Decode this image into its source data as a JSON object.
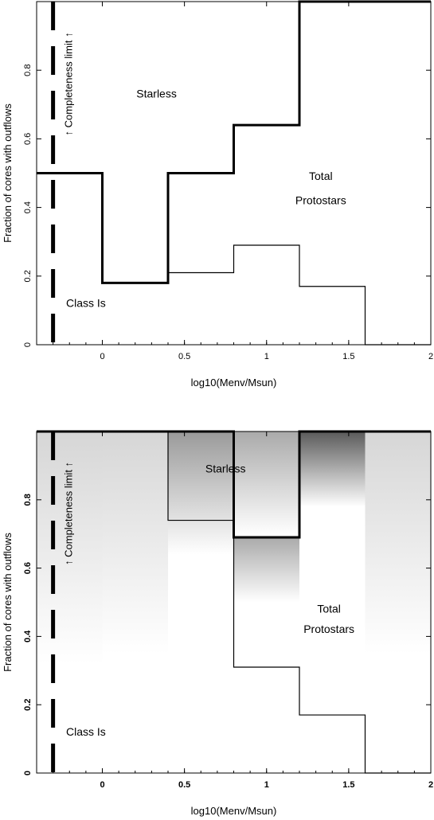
{
  "chart_data": [
    {
      "type": "step",
      "xlabel": "log10(Menv/Msun)",
      "ylabel": "Fraction of cores with outflows",
      "xlim": [
        -0.4,
        2.0
      ],
      "ylim": [
        0,
        1.0
      ],
      "xticks": [
        {
          "value": 0,
          "label": "0"
        },
        {
          "value": 0.5,
          "label": "0.5"
        },
        {
          "value": 1,
          "label": "1"
        },
        {
          "value": 1.5,
          "label": "1.5"
        },
        {
          "value": 2,
          "label": "2"
        }
      ],
      "yticks": [
        {
          "value": 0,
          "label": "0"
        },
        {
          "value": 0.2,
          "label": "0.2"
        },
        {
          "value": 0.4,
          "label": "0.4"
        },
        {
          "value": 0.6,
          "label": "0.6"
        },
        {
          "value": 0.8,
          "label": "0.8"
        }
      ],
      "bin_edges": [
        -0.4,
        0,
        0.4,
        0.8,
        1.2,
        1.6,
        2.0
      ],
      "series": [
        {
          "name": "Starless",
          "style": "thick",
          "values": [
            0.5,
            0.18,
            0.5,
            0.64,
            1.0,
            1.0
          ]
        },
        {
          "name": "Class Is",
          "style": "thin",
          "values": [
            0.5,
            0.18,
            0.21,
            0.29,
            0.17,
            0.0
          ]
        }
      ],
      "completeness_limit_x": -0.3,
      "annotations": [
        {
          "text": "Starless",
          "x": 0.33,
          "y": 0.72
        },
        {
          "text": "Total",
          "x": 1.33,
          "y": 0.48
        },
        {
          "text": "Protostars",
          "x": 1.33,
          "y": 0.41
        },
        {
          "text": "Class Is",
          "x": -0.1,
          "y": 0.11
        }
      ],
      "completeness_label": "↑ Completeness limit ↑"
    },
    {
      "type": "step",
      "xlabel": "log10(Menv/Msun)",
      "ylabel": "Fraction of cores with outflows",
      "xlim": [
        -0.4,
        2.0
      ],
      "ylim": [
        0,
        1.0
      ],
      "xticks": [
        {
          "value": 0,
          "label": "0"
        },
        {
          "value": 0.5,
          "label": "0.5"
        },
        {
          "value": 1,
          "label": "1"
        },
        {
          "value": 1.5,
          "label": "1.5"
        },
        {
          "value": 2,
          "label": "2"
        }
      ],
      "yticks": [
        {
          "value": 0,
          "label": "0"
        },
        {
          "value": 0.2,
          "label": "0.2"
        },
        {
          "value": 0.4,
          "label": "0.4"
        },
        {
          "value": 0.6,
          "label": "0.6"
        },
        {
          "value": 0.8,
          "label": "0.8"
        }
      ],
      "bin_edges": [
        -0.4,
        0,
        0.4,
        0.8,
        1.2,
        1.6,
        2.0
      ],
      "series": [
        {
          "name": "Starless",
          "style": "thick",
          "values": [
            1.0,
            1.0,
            1.0,
            0.69,
            1.0,
            1.0
          ]
        },
        {
          "name": "Class Is",
          "style": "thin",
          "values": [
            1.0,
            1.0,
            0.74,
            0.31,
            0.17,
            0.0
          ]
        }
      ],
      "shading": [
        {
          "x0": -0.4,
          "x1": 0.0,
          "top": 1.0,
          "bottom": 0.32,
          "peak": "#d6d6d6"
        },
        {
          "x0": 0.0,
          "x1": 0.4,
          "top": 1.0,
          "bottom": 0.35,
          "peak": "#d6d6d6"
        },
        {
          "x0": 0.4,
          "x1": 0.8,
          "top": 1.0,
          "bottom": 0.64,
          "peak": "#9a9a9a"
        },
        {
          "x0": 0.8,
          "x1": 1.2,
          "top": 1.0,
          "bottom": 0.5,
          "peak": "#aaaaaa",
          "dip": 0.69
        },
        {
          "x0": 1.2,
          "x1": 1.6,
          "top": 1.0,
          "bottom": 0.78,
          "peak": "#5a5a5a"
        },
        {
          "x0": 1.6,
          "x1": 2.0,
          "top": 1.0,
          "bottom": 0.35,
          "peak": "#d6d6d6"
        }
      ],
      "completeness_limit_x": -0.3,
      "annotations": [
        {
          "text": "Starless",
          "x": 0.75,
          "y": 0.88
        },
        {
          "text": "Total",
          "x": 1.38,
          "y": 0.47
        },
        {
          "text": "Protostars",
          "x": 1.38,
          "y": 0.41
        },
        {
          "text": "Class Is",
          "x": -0.1,
          "y": 0.11
        }
      ],
      "completeness_label": "↑ Completeness limit ↑"
    }
  ]
}
